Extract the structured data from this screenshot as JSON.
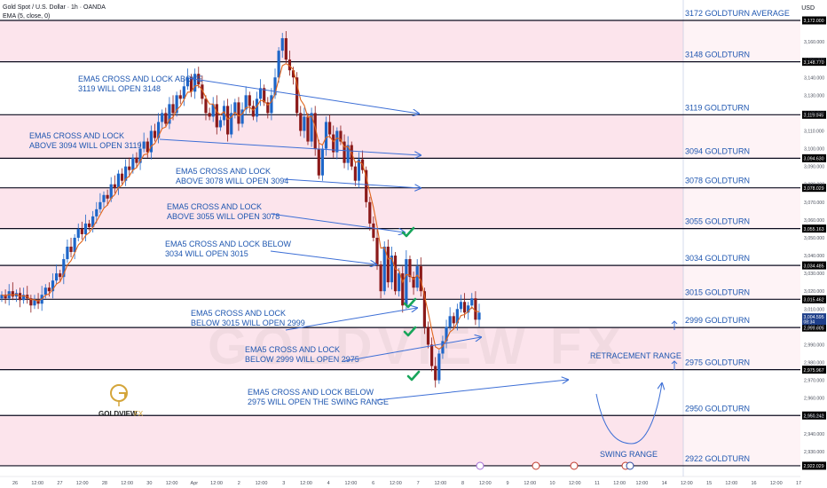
{
  "header": {
    "symbol": "Gold Spot / U.S. Dollar · 1h · OANDA",
    "indicator": "EMA (5, close, 0)",
    "currency": "USD"
  },
  "colors": {
    "band_fill": "#fce4ec",
    "level_line": "#0b0b1e",
    "annotation_text": "#1e56b0",
    "arrow": "#3d6fd6",
    "candle_up": "#1e66c8",
    "candle_down": "#8b1a1a",
    "ema": "#e0641b",
    "check": "#17a55a",
    "price_badge": "#1e3f8a"
  },
  "chart_data": {
    "type": "candlestick",
    "ylim": [
      2920,
      3172
    ],
    "y_ticks": [
      "3,160.000",
      "3,150.000",
      "3,140.000",
      "3,130.000",
      "3,120.000",
      "3,110.000",
      "3,100.000",
      "3,090.000",
      "3,080.000",
      "3,070.000",
      "3,060.000",
      "3,050.000",
      "3,040.000",
      "3,030.000",
      "3,020.000",
      "3,010.000",
      "3,000.000",
      "2,990.000",
      "2,980.000",
      "2,970.000",
      "2,960.000",
      "2,950.000",
      "2,940.000",
      "2,930.000"
    ],
    "y_tick_values": [
      3160,
      3150,
      3140,
      3130,
      3120,
      3110,
      3100,
      3090,
      3080,
      3070,
      3060,
      3050,
      3040,
      3030,
      3020,
      3010,
      3000,
      2990,
      2980,
      2970,
      2960,
      2950,
      2940,
      2930
    ],
    "x_ticks": [
      "26",
      "12:00",
      "27",
      "12:00",
      "28",
      "12:00",
      "30",
      "12:00",
      "Apr",
      "12:00",
      "2",
      "12:00",
      "3",
      "12:00",
      "4",
      "12:00",
      "6",
      "12:00",
      "7",
      "12:00",
      "8",
      "12:00",
      "9",
      "12:00",
      "10",
      "12:00",
      "11",
      "12:00",
      "12:00",
      "14",
      "12:00",
      "15",
      "12:00",
      "16",
      "12:00",
      "17"
    ],
    "levels": [
      {
        "value": 3172.0,
        "price_label": "3,172.000",
        "name": "3172 GOLDTURN AVERAGE"
      },
      {
        "value": 3148.77,
        "price_label": "3,148.770",
        "name": "3148 GOLDTURN"
      },
      {
        "value": 3119.045,
        "price_label": "3,119.045",
        "name": "3119 GOLDTURN"
      },
      {
        "value": 3094.63,
        "price_label": "3,094.630",
        "name": "3094 GOLDTURN"
      },
      {
        "value": 3078.029,
        "price_label": "3,078.029",
        "name": "3078 GOLDTURN"
      },
      {
        "value": 3055.163,
        "price_label": "3,055.163",
        "name": "3055 GOLDTURN"
      },
      {
        "value": 3034.485,
        "price_label": "3,034.485",
        "name": "3034 GOLDTURN"
      },
      {
        "value": 3015.462,
        "price_label": "3,015.462",
        "name": "3015 GOLDTURN"
      },
      {
        "value": 2999.605,
        "price_label": "2,999.605",
        "name": "2999 GOLDTURN"
      },
      {
        "value": 2975.967,
        "price_label": "2,975.967",
        "name": "2975 GOLDTURN"
      },
      {
        "value": 2950.242,
        "price_label": "2,950.242",
        "name": "2950 GOLDTURN"
      },
      {
        "value": 2922.029,
        "price_label": "2,922.029",
        "name": "2922 GOLDTURN"
      }
    ],
    "current_price": {
      "value": 3004.595,
      "label": "3,004.595",
      "countdown": "08:34"
    },
    "ohlc_path": [
      3018,
      3016,
      3020,
      3017,
      3019,
      3015,
      3018,
      3016,
      3012,
      3015,
      3013,
      3018,
      3022,
      3020,
      3026,
      3030,
      3028,
      3038,
      3045,
      3042,
      3050,
      3055,
      3052,
      3058,
      3056,
      3062,
      3066,
      3070,
      3074,
      3072,
      3080,
      3078,
      3086,
      3082,
      3090,
      3088,
      3095,
      3092,
      3100,
      3104,
      3098,
      3110,
      3106,
      3115,
      3120,
      3114,
      3125,
      3120,
      3130,
      3128,
      3135,
      3140,
      3132,
      3142,
      3136,
      3128,
      3120,
      3118,
      3125,
      3112,
      3116,
      3124,
      3108,
      3120,
      3126,
      3114,
      3122,
      3130,
      3124,
      3118,
      3128,
      3134,
      3126,
      3120,
      3130,
      3140,
      3155,
      3162,
      3150,
      3144,
      3140,
      3120,
      3110,
      3118,
      3104,
      3120,
      3100,
      3085,
      3100,
      3115,
      3108,
      3098,
      3110,
      3104,
      3092,
      3102,
      3090,
      3082,
      3094,
      3088,
      3070,
      3058,
      3050,
      3035,
      3020,
      3045,
      3025,
      3040,
      3020,
      3030,
      3012,
      3038,
      3028,
      3022,
      3034,
      3020,
      3000,
      2990,
      2978,
      2970,
      2985,
      2992,
      3000,
      3006,
      3002,
      3010,
      3014,
      3008,
      3012,
      3016,
      3004,
      3008
    ],
    "annotations": [
      {
        "line1": "EMA5 CROSS AND LOCK ABOVE",
        "line2": "3119 WILL OPEN 3148"
      },
      {
        "line1": "EMA5 CROSS AND LOCK",
        "line2": "ABOVE 3094 WILL OPEN 3119"
      },
      {
        "line1": "EMA5 CROSS AND LOCK",
        "line2": "ABOVE 3078 WILL OPEN 3094"
      },
      {
        "line1": "EMA5 CROSS AND LOCK",
        "line2": "ABOVE 3055 WILL OPEN 3078"
      },
      {
        "line1": "EMA5 CROSS AND LOCK BELOW",
        "line2": "3034 WILL OPEN 3015"
      },
      {
        "line1": "EMA5 CROSS AND LOCK",
        "line2": "BELOW 3015 WILL OPEN 2999"
      },
      {
        "line1": "EMA5 CROSS AND LOCK",
        "line2": "BELOW 2999 WILL OPEN 2975"
      },
      {
        "line1": "EMA5 CROSS AND LOCK BELOW",
        "line2": "2975 WILL OPEN THE SWING RANGE"
      }
    ],
    "retracement_label": "RETRACEMENT RANGE",
    "swing_label": "SWING RANGE",
    "watermark": "GOLDVIEW FX",
    "logo": {
      "text1": "GOLDVIEW",
      "text2": "FX"
    }
  }
}
